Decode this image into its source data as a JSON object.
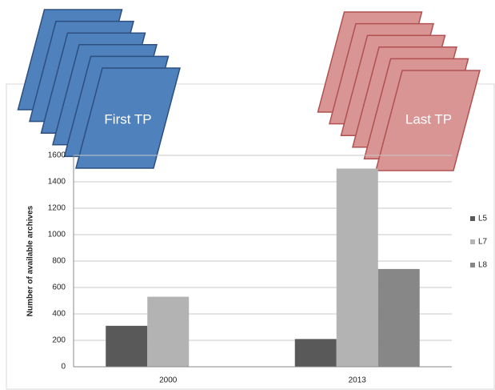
{
  "chart_data": {
    "type": "bar",
    "annotations": [
      "First TP",
      "Last TP"
    ],
    "y_label": "Number of available archives",
    "categories": [
      "2000",
      "2013"
    ],
    "series": [
      {
        "name": "L5",
        "color": "#595959",
        "values": [
          310,
          210
        ]
      },
      {
        "name": "L7",
        "color": "#b3b3b3",
        "values": [
          530,
          1500
        ]
      },
      {
        "name": "L8",
        "color": "#878787",
        "values": [
          null,
          740
        ]
      }
    ],
    "ylim": [
      0,
      1600
    ],
    "yticks": [
      0,
      200,
      400,
      600,
      800,
      1000,
      1200,
      1400,
      1600
    ],
    "grid": true,
    "legend": "right"
  }
}
